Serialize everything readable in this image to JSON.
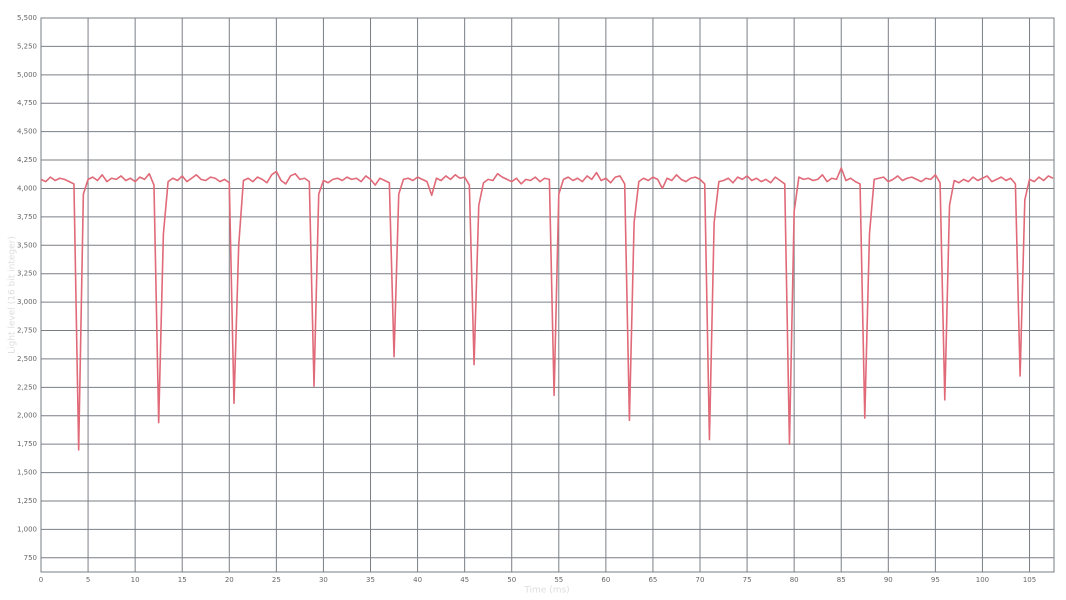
{
  "chart_data": {
    "type": "line",
    "x_label": "Time (ms)",
    "y_label": "Light level (16 bit integer)",
    "color": "#e06a78",
    "grid": true,
    "xlim": [
      0,
      107.6
    ],
    "ylim": [
      625,
      5500
    ],
    "xticks": [
      0,
      5,
      10,
      15,
      20,
      25,
      30,
      35,
      40,
      45,
      50,
      55,
      60,
      65,
      70,
      75,
      80,
      85,
      90,
      95,
      100,
      105
    ],
    "yticks": [
      {
        "value": 750,
        "label": "750"
      },
      {
        "value": 1000,
        "label": "1,000"
      },
      {
        "value": 1250,
        "label": "1,250"
      },
      {
        "value": 1500,
        "label": "1,500"
      },
      {
        "value": 1750,
        "label": "1,750"
      },
      {
        "value": 2000,
        "label": "2,000"
      },
      {
        "value": 2250,
        "label": "2,250"
      },
      {
        "value": 2500,
        "label": "2,500"
      },
      {
        "value": 2750,
        "label": "2,750"
      },
      {
        "value": 3000,
        "label": "3,000"
      },
      {
        "value": 3250,
        "label": "3,250"
      },
      {
        "value": 3500,
        "label": "3,500"
      },
      {
        "value": 3750,
        "label": "3,750"
      },
      {
        "value": 4000,
        "label": "4,000"
      },
      {
        "value": 4250,
        "label": "4,250"
      },
      {
        "value": 4500,
        "label": "4,500"
      },
      {
        "value": 4750,
        "label": "4,750"
      },
      {
        "value": 5000,
        "label": "5,000"
      },
      {
        "value": 5250,
        "label": "5,250"
      },
      {
        "value": 5500,
        "label": "5,500"
      }
    ],
    "x": [
      0,
      0.5,
      1,
      1.5,
      2,
      2.5,
      3,
      3.5,
      4,
      4.5,
      5,
      5.5,
      6,
      6.5,
      7,
      7.5,
      8,
      8.5,
      9,
      9.5,
      10,
      10.5,
      11,
      11.5,
      12,
      12.5,
      13,
      13.5,
      14,
      14.5,
      15,
      15.5,
      16,
      16.5,
      17,
      17.5,
      18,
      18.5,
      19,
      19.5,
      20,
      20.5,
      21,
      21.5,
      22,
      22.5,
      23,
      23.5,
      24,
      24.5,
      25,
      25.5,
      26,
      26.5,
      27,
      27.5,
      28,
      28.5,
      29,
      29.5,
      30,
      30.5,
      31,
      31.5,
      32,
      32.5,
      33,
      33.5,
      34,
      34.5,
      35,
      35.5,
      36,
      36.5,
      37,
      37.5,
      38,
      38.5,
      39,
      39.5,
      40,
      40.5,
      41,
      41.5,
      42,
      42.5,
      43,
      43.5,
      44,
      44.5,
      45,
      45.5,
      46,
      46.5,
      47,
      47.5,
      48,
      48.5,
      49,
      49.5,
      50,
      50.5,
      51,
      51.5,
      52,
      52.5,
      53,
      53.5,
      54,
      54.5,
      55,
      55.5,
      56,
      56.5,
      57,
      57.5,
      58,
      58.5,
      59,
      59.5,
      60,
      60.5,
      61,
      61.5,
      62,
      62.5,
      63,
      63.5,
      64,
      64.5,
      65,
      65.5,
      66,
      66.5,
      67,
      67.5,
      68,
      68.5,
      69,
      69.5,
      70,
      70.5,
      71,
      71.5,
      72,
      72.5,
      73,
      73.5,
      74,
      74.5,
      75,
      75.5,
      76,
      76.5,
      77,
      77.5,
      78,
      78.5,
      79,
      79.5,
      80,
      80.5,
      81,
      81.5,
      82,
      82.5,
      83,
      83.5,
      84,
      84.5,
      85,
      85.5,
      86,
      86.5,
      87,
      87.5,
      88,
      88.5,
      89,
      89.5,
      90,
      90.5,
      91,
      91.5,
      92,
      92.5,
      93,
      93.5,
      94,
      94.5,
      95,
      95.5,
      96,
      96.5,
      97,
      97.5,
      98,
      98.5,
      99,
      99.5,
      100,
      100.5,
      101,
      101.5,
      102,
      102.5,
      103,
      103.5,
      104,
      104.5,
      105,
      105.5,
      106,
      106.5,
      107,
      107.5
    ],
    "values": [
      4080,
      4060,
      4100,
      4070,
      4090,
      4080,
      4060,
      4040,
      1700,
      3950,
      4080,
      4100,
      4070,
      4120,
      4060,
      4090,
      4080,
      4110,
      4070,
      4090,
      4060,
      4100,
      4080,
      4130,
      4030,
      1940,
      3600,
      4060,
      4090,
      4070,
      4110,
      4060,
      4090,
      4120,
      4080,
      4070,
      4100,
      4090,
      4060,
      4080,
      4050,
      2110,
      3500,
      4070,
      4090,
      4060,
      4100,
      4080,
      4050,
      4120,
      4150,
      4070,
      4040,
      4110,
      4130,
      4080,
      4090,
      4060,
      2260,
      3950,
      4070,
      4050,
      4080,
      4090,
      4070,
      4100,
      4080,
      4090,
      4060,
      4110,
      4080,
      4030,
      4090,
      4070,
      4050,
      2520,
      3950,
      4080,
      4090,
      4070,
      4100,
      4080,
      4060,
      3940,
      4090,
      4070,
      4110,
      4080,
      4120,
      4090,
      4100,
      4030,
      2450,
      3850,
      4050,
      4080,
      4070,
      4130,
      4100,
      4080,
      4060,
      4090,
      4040,
      4080,
      4070,
      4100,
      4060,
      4090,
      4080,
      2180,
      3950,
      4080,
      4100,
      4070,
      4090,
      4060,
      4110,
      4080,
      4140,
      4070,
      4090,
      4050,
      4100,
      4110,
      4040,
      1960,
      3700,
      4060,
      4090,
      4070,
      4100,
      4080,
      4000,
      4090,
      4070,
      4120,
      4080,
      4060,
      4090,
      4100,
      4080,
      4040,
      1790,
      3700,
      4060,
      4070,
      4090,
      4050,
      4100,
      4080,
      4110,
      4070,
      4090,
      4060,
      4080,
      4050,
      4100,
      4070,
      4040,
      1750,
      3800,
      4100,
      4080,
      4090,
      4070,
      4080,
      4120,
      4060,
      4090,
      4080,
      4180,
      4070,
      4090,
      4060,
      4040,
      1980,
      3600,
      4080,
      4090,
      4100,
      4060,
      4080,
      4110,
      4070,
      4090,
      4100,
      4080,
      4060,
      4090,
      4080,
      4120,
      4050,
      2140,
      3850,
      4070,
      4050,
      4080,
      4060,
      4100,
      4070,
      4090,
      4110,
      4060,
      4080,
      4100,
      4070,
      4090,
      4040,
      2350,
      3900,
      4080,
      4060,
      4100,
      4070,
      4110,
      4090
    ]
  }
}
